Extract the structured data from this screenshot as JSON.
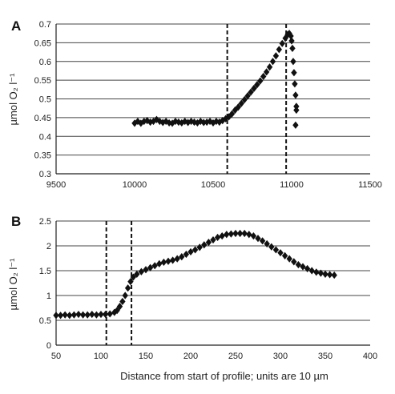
{
  "chart_data": [
    {
      "type": "scatter",
      "panel": "A",
      "ylabel": "µmol O₂ l⁻¹",
      "xlabel": "",
      "xlim": [
        9500,
        11500
      ],
      "ylim": [
        0.3,
        0.7
      ],
      "xticks": [
        "9500",
        "10000",
        "10500",
        "11000",
        "11500"
      ],
      "yticks": [
        "0.3",
        "0.35",
        "0.4",
        "0.45",
        "0.5",
        "0.55",
        "0.6",
        "0.65",
        "0.7"
      ],
      "grid": "horizontal",
      "marker": "diamond",
      "color": "#111111",
      "vlines": [
        10590,
        10965
      ],
      "points": [
        [
          10000,
          0.435
        ],
        [
          10020,
          0.44
        ],
        [
          10040,
          0.435
        ],
        [
          10060,
          0.44
        ],
        [
          10080,
          0.442
        ],
        [
          10100,
          0.438
        ],
        [
          10120,
          0.44
        ],
        [
          10140,
          0.445
        ],
        [
          10160,
          0.44
        ],
        [
          10180,
          0.437
        ],
        [
          10200,
          0.44
        ],
        [
          10220,
          0.436
        ],
        [
          10240,
          0.435
        ],
        [
          10260,
          0.44
        ],
        [
          10280,
          0.438
        ],
        [
          10300,
          0.436
        ],
        [
          10320,
          0.44
        ],
        [
          10340,
          0.437
        ],
        [
          10360,
          0.44
        ],
        [
          10380,
          0.438
        ],
        [
          10400,
          0.436
        ],
        [
          10420,
          0.44
        ],
        [
          10440,
          0.437
        ],
        [
          10460,
          0.438
        ],
        [
          10480,
          0.44
        ],
        [
          10500,
          0.436
        ],
        [
          10520,
          0.44
        ],
        [
          10540,
          0.438
        ],
        [
          10560,
          0.442
        ],
        [
          10580,
          0.447
        ],
        [
          10600,
          0.452
        ],
        [
          10620,
          0.46
        ],
        [
          10640,
          0.47
        ],
        [
          10660,
          0.478
        ],
        [
          10680,
          0.488
        ],
        [
          10700,
          0.498
        ],
        [
          10720,
          0.508
        ],
        [
          10740,
          0.518
        ],
        [
          10760,
          0.528
        ],
        [
          10780,
          0.538
        ],
        [
          10800,
          0.548
        ],
        [
          10820,
          0.56
        ],
        [
          10840,
          0.572
        ],
        [
          10860,
          0.585
        ],
        [
          10880,
          0.6
        ],
        [
          10900,
          0.615
        ],
        [
          10920,
          0.632
        ],
        [
          10940,
          0.648
        ],
        [
          10960,
          0.662
        ],
        [
          10975,
          0.672
        ],
        [
          10985,
          0.675
        ],
        [
          10995,
          0.668
        ],
        [
          11000,
          0.655
        ],
        [
          11005,
          0.635
        ],
        [
          11010,
          0.6
        ],
        [
          11015,
          0.57
        ],
        [
          11020,
          0.54
        ],
        [
          11025,
          0.51
        ],
        [
          11030,
          0.48
        ],
        [
          11030,
          0.47
        ],
        [
          11025,
          0.43
        ]
      ]
    },
    {
      "type": "scatter",
      "panel": "B",
      "ylabel": "µmol O₂ l⁻¹",
      "xlabel": "Distance from start of profile; units are 10 µm",
      "xlim": [
        50,
        400
      ],
      "ylim": [
        0,
        2.5
      ],
      "xticks": [
        "50",
        "100",
        "150",
        "200",
        "250",
        "300",
        "350",
        "400"
      ],
      "yticks": [
        "0",
        "0.5",
        "1",
        "1.5",
        "2",
        "2.5"
      ],
      "grid": "horizontal",
      "marker": "diamond",
      "color": "#111111",
      "vlines": [
        106,
        134
      ],
      "points": [
        [
          50,
          0.6
        ],
        [
          55,
          0.6
        ],
        [
          60,
          0.61
        ],
        [
          65,
          0.6
        ],
        [
          70,
          0.61
        ],
        [
          75,
          0.62
        ],
        [
          80,
          0.61
        ],
        [
          85,
          0.61
        ],
        [
          90,
          0.62
        ],
        [
          95,
          0.61
        ],
        [
          100,
          0.62
        ],
        [
          105,
          0.62
        ],
        [
          110,
          0.63
        ],
        [
          115,
          0.66
        ],
        [
          118,
          0.7
        ],
        [
          121,
          0.78
        ],
        [
          124,
          0.88
        ],
        [
          127,
          1.0
        ],
        [
          130,
          1.15
        ],
        [
          133,
          1.28
        ],
        [
          136,
          1.37
        ],
        [
          140,
          1.43
        ],
        [
          145,
          1.48
        ],
        [
          150,
          1.52
        ],
        [
          155,
          1.56
        ],
        [
          160,
          1.6
        ],
        [
          165,
          1.64
        ],
        [
          170,
          1.67
        ],
        [
          175,
          1.69
        ],
        [
          180,
          1.71
        ],
        [
          185,
          1.74
        ],
        [
          190,
          1.78
        ],
        [
          195,
          1.83
        ],
        [
          200,
          1.88
        ],
        [
          205,
          1.92
        ],
        [
          210,
          1.97
        ],
        [
          215,
          2.02
        ],
        [
          220,
          2.07
        ],
        [
          225,
          2.12
        ],
        [
          230,
          2.17
        ],
        [
          235,
          2.2
        ],
        [
          240,
          2.23
        ],
        [
          245,
          2.24
        ],
        [
          250,
          2.25
        ],
        [
          255,
          2.25
        ],
        [
          260,
          2.25
        ],
        [
          265,
          2.23
        ],
        [
          270,
          2.2
        ],
        [
          275,
          2.15
        ],
        [
          280,
          2.1
        ],
        [
          285,
          2.04
        ],
        [
          290,
          1.98
        ],
        [
          295,
          1.92
        ],
        [
          300,
          1.86
        ],
        [
          305,
          1.8
        ],
        [
          310,
          1.74
        ],
        [
          315,
          1.68
        ],
        [
          320,
          1.62
        ],
        [
          325,
          1.58
        ],
        [
          330,
          1.54
        ],
        [
          335,
          1.5
        ],
        [
          340,
          1.47
        ],
        [
          345,
          1.45
        ],
        [
          350,
          1.43
        ],
        [
          355,
          1.42
        ],
        [
          360,
          1.41
        ]
      ]
    }
  ]
}
